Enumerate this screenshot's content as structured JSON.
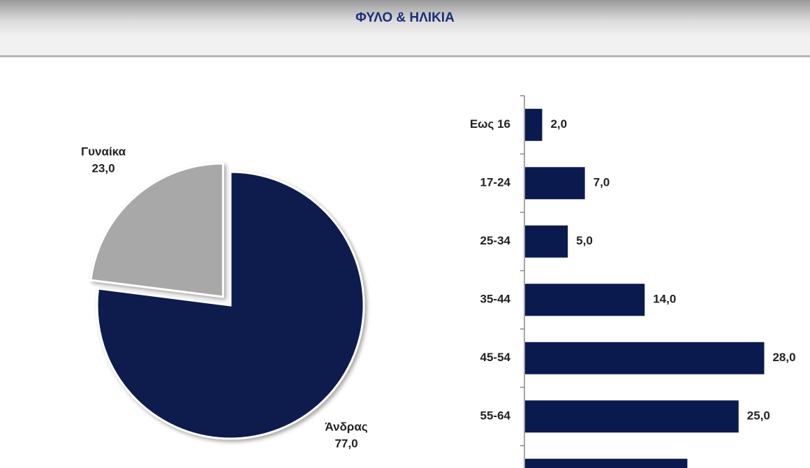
{
  "header": {
    "title": "ΦΥΛΟ & ΗΛΙΚΙΑ"
  },
  "chart_data": [
    {
      "type": "pie",
      "categories": [
        "Άνδρας",
        "Γυναίκα"
      ],
      "values": [
        77,
        23
      ],
      "value_labels": [
        "77,0",
        "23,0"
      ],
      "colors": [
        "#0b1a4e",
        "#a8a8a8"
      ],
      "exploded": "Γυναίκα"
    },
    {
      "type": "barh",
      "categories": [
        "Εως 16",
        "17-24",
        "25-34",
        "35-44",
        "45-54",
        "55-64",
        null
      ],
      "values": [
        2,
        7,
        5,
        14,
        28,
        25,
        19
      ],
      "value_labels": [
        "2,0",
        "7,0",
        "5,0",
        "14,0",
        "28,0",
        "25,0",
        null
      ],
      "color": "#0b1a4e"
    }
  ]
}
